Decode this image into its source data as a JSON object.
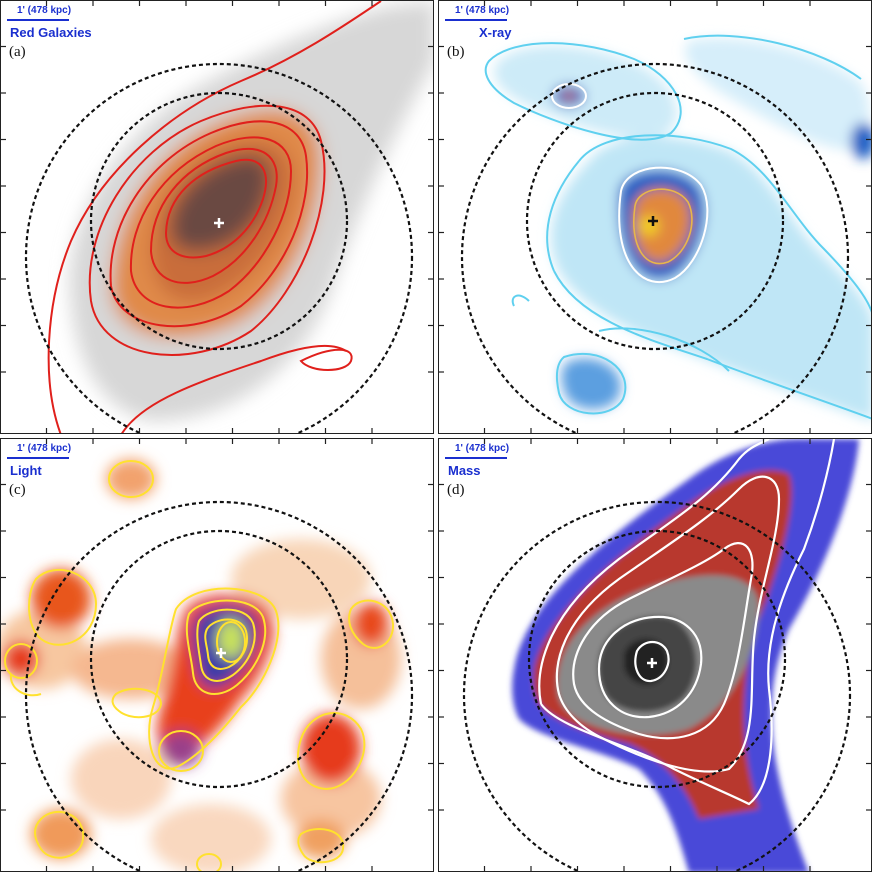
{
  "figure": {
    "panels": [
      {
        "id": "a",
        "letter": "(a)",
        "title": "Red Galaxies",
        "scale": "1'  (478 kpc)",
        "map": "red-galaxy-density"
      },
      {
        "id": "b",
        "letter": "(b)",
        "title": "X-ray",
        "scale": "1'  (478 kpc)",
        "map": "x-ray-emission"
      },
      {
        "id": "c",
        "letter": "(c)",
        "title": "Light",
        "scale": "1'  (478 kpc)",
        "map": "luminosity-map"
      },
      {
        "id": "d",
        "letter": "(d)",
        "title": "Mass",
        "scale": "1'  (478 kpc)",
        "map": "mass-map"
      }
    ],
    "colors": {
      "label_blue": "#1a2fcf",
      "red_contour": "#e0201c",
      "xray_contour": "#5fd0ef",
      "light_contour": "#ffe12e",
      "mass_contour": "#ffffff",
      "circle": "#111111"
    },
    "icons": {
      "center_marker": "plus-marker-icon"
    }
  }
}
